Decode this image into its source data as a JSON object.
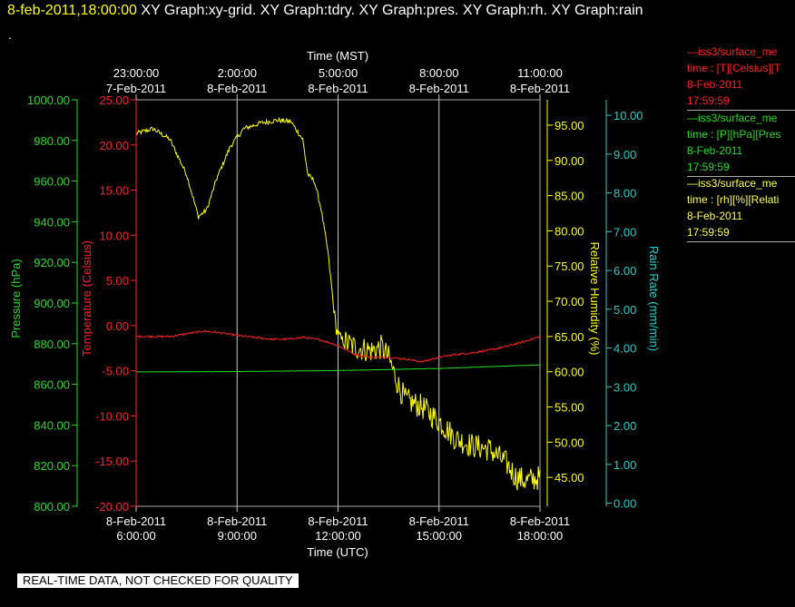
{
  "header": {
    "datetime": "8-feb-2011,18:00:00",
    "graphs": "XY Graph:xy-grid.  XY Graph:tdry.  XY Graph:pres.  XY Graph:rh.  XY Graph:rain",
    "dot": "."
  },
  "notice": "REAL-TIME DATA, NOT CHECKED FOR QUALITY",
  "legend": [
    {
      "name": "—iss3/surface_me",
      "vars": "time : [T][Celsius][T",
      "date": "8-Feb-2011",
      "time": "17:59:59",
      "color": "#ff2020"
    },
    {
      "name": "—iss3/surface_me",
      "vars": "time : [P][hPa][Pres",
      "date": "8-Feb-2011",
      "time": "17:59:59",
      "color": "#22dd22"
    },
    {
      "name": "—iss3/surface_me",
      "vars": "time : [rh][%][Relati",
      "date": "8-Feb-2011",
      "time": "17:59:59",
      "color": "#ffff44"
    }
  ],
  "chart_data": {
    "type": "line",
    "grid": true,
    "x_bottom": {
      "label": "Time (UTC)",
      "ticks": [
        [
          "8-Feb-2011",
          "6:00:00"
        ],
        [
          "8-Feb-2011",
          "9:00:00"
        ],
        [
          "8-Feb-2011",
          "12:00:00"
        ],
        [
          "8-Feb-2011",
          "15:00:00"
        ],
        [
          "8-Feb-2011",
          "18:00:00"
        ]
      ],
      "range": [
        "8-Feb-2011 6:00:00",
        "8-Feb-2011 18:00:00"
      ]
    },
    "x_top": {
      "label": "Time (MST)",
      "ticks": [
        [
          "23:00:00",
          "7-Feb-2011"
        ],
        [
          "2:00:00",
          "8-Feb-2011"
        ],
        [
          "5:00:00",
          "8-Feb-2011"
        ],
        [
          "8:00:00",
          "8-Feb-2011"
        ],
        [
          "11:00:00",
          "8-Feb-2011"
        ]
      ]
    },
    "axes": [
      {
        "id": "pressure",
        "label": "Pressure (hPa)",
        "color": "#22dd22",
        "range": [
          800,
          1000
        ],
        "ticks": [
          "1000.00",
          "980.00",
          "960.00",
          "940.00",
          "920.00",
          "900.00",
          "880.00",
          "860.00",
          "840.00",
          "820.00",
          "800.00"
        ]
      },
      {
        "id": "temperature",
        "label": "Temperature (Celsius)",
        "color": "#ff2020",
        "range": [
          -20,
          25
        ],
        "ticks": [
          "25.00",
          "20.00",
          "15.00",
          "10.00",
          "5.00",
          "0.00",
          "-5.00",
          "-10.00",
          "-15.00",
          "-20.00"
        ]
      },
      {
        "id": "rh",
        "label": "Relative Humidity (%)",
        "color": "#ffff00",
        "range": [
          40.9,
          98.6
        ],
        "ticks": [
          "95.00",
          "90.00",
          "85.00",
          "80.00",
          "75.00",
          "70.00",
          "65.00",
          "60.00",
          "55.00",
          "50.00",
          "45.00"
        ]
      },
      {
        "id": "rain",
        "label": "Rain Rate (mm/min)",
        "color": "#22cccc",
        "range": [
          -0.08,
          10.4
        ],
        "ticks": [
          "10.00",
          "9.00",
          "8.00",
          "7.00",
          "6.00",
          "5.00",
          "4.00",
          "3.00",
          "2.00",
          "1.00",
          "0.00"
        ]
      }
    ],
    "series": [
      {
        "axis": "rh",
        "color": "#ffff00",
        "noise": 1.2,
        "x": [
          6.0,
          6.5,
          7.0,
          7.5,
          7.85,
          8.1,
          8.4,
          8.8,
          9.2,
          9.7,
          10.2,
          10.6,
          10.95,
          11.1,
          11.3,
          11.5,
          11.7,
          11.85,
          11.95,
          12.1,
          12.5,
          13.0,
          13.3,
          13.5,
          13.8,
          14.0,
          14.5,
          15.0,
          15.5,
          16.0,
          16.5,
          17.0,
          17.3,
          17.6,
          18.0
        ],
        "y": [
          93.8,
          94.5,
          93.0,
          88.0,
          82.0,
          83.0,
          87.5,
          92.0,
          94.5,
          95.3,
          95.7,
          95.5,
          93.0,
          88.0,
          87.0,
          83.0,
          77.0,
          70.0,
          66.0,
          64.5,
          63.5,
          63.0,
          63.5,
          62.0,
          58.0,
          56.0,
          55.0,
          53.0,
          50.5,
          49.5,
          49.0,
          47.0,
          45.0,
          44.5,
          45.0
        ]
      },
      {
        "axis": "temperature",
        "color": "#ff2020",
        "noise": 0.1,
        "x": [
          6.0,
          7.0,
          7.5,
          8.0,
          8.5,
          9.0,
          9.5,
          10.0,
          10.5,
          11.0,
          11.5,
          12.0,
          12.5,
          13.0,
          13.5,
          14.0,
          14.5,
          15.0,
          15.5,
          16.0,
          16.5,
          17.0,
          17.5,
          18.0
        ],
        "y": [
          -1.2,
          -1.2,
          -0.9,
          -0.6,
          -0.8,
          -1.1,
          -1.3,
          -1.5,
          -1.5,
          -1.3,
          -1.6,
          -2.2,
          -3.2,
          -3.5,
          -3.5,
          -3.7,
          -4.0,
          -3.5,
          -3.2,
          -3.0,
          -2.7,
          -2.3,
          -1.8,
          -1.2
        ]
      },
      {
        "axis": "pressure",
        "color": "#22dd22",
        "noise": 0.05,
        "x": [
          6.0,
          9.0,
          12.0,
          15.0,
          18.0
        ],
        "y": [
          866.1,
          866.3,
          866.8,
          867.8,
          869.6
        ]
      }
    ]
  }
}
